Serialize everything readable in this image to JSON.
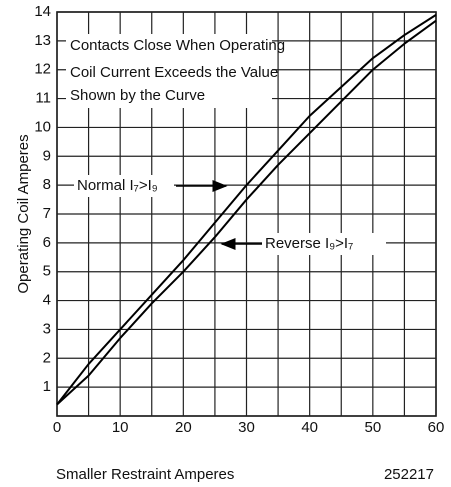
{
  "chart_data": {
    "type": "line",
    "annotations": [
      "Contacts Close When Operating",
      "Coil Current Exceeds the Value",
      "Shown by the Curve"
    ],
    "figure_number": "252217",
    "xlabel": "Smaller Restraint Amperes",
    "ylabel": "Operating Coil Amperes",
    "x": [
      0,
      5,
      10,
      15,
      20,
      25,
      30,
      35,
      40,
      45,
      50,
      55,
      60
    ],
    "series": [
      {
        "name": "Normal I₇>I₉",
        "color": "#000000",
        "values": [
          0.4,
          1.8,
          3.0,
          4.2,
          5.4,
          6.7,
          8.0,
          9.2,
          10.4,
          11.4,
          12.4,
          13.2,
          13.9
        ]
      },
      {
        "name": "Reverse I₉>I₇",
        "color": "#000000",
        "values": [
          0.4,
          1.4,
          2.7,
          3.9,
          5.0,
          6.2,
          7.5,
          8.7,
          9.8,
          10.9,
          12.0,
          12.9,
          13.7
        ]
      }
    ],
    "xlim": [
      0,
      60
    ],
    "ylim": [
      0,
      14
    ],
    "xticks": [
      0,
      10,
      20,
      30,
      40,
      50,
      60
    ],
    "xminor": [
      5,
      15,
      25,
      35,
      45,
      55
    ],
    "yticks": [
      1,
      2,
      3,
      4,
      5,
      6,
      7,
      8,
      9,
      10,
      11,
      12,
      13,
      14
    ],
    "grid": true
  }
}
